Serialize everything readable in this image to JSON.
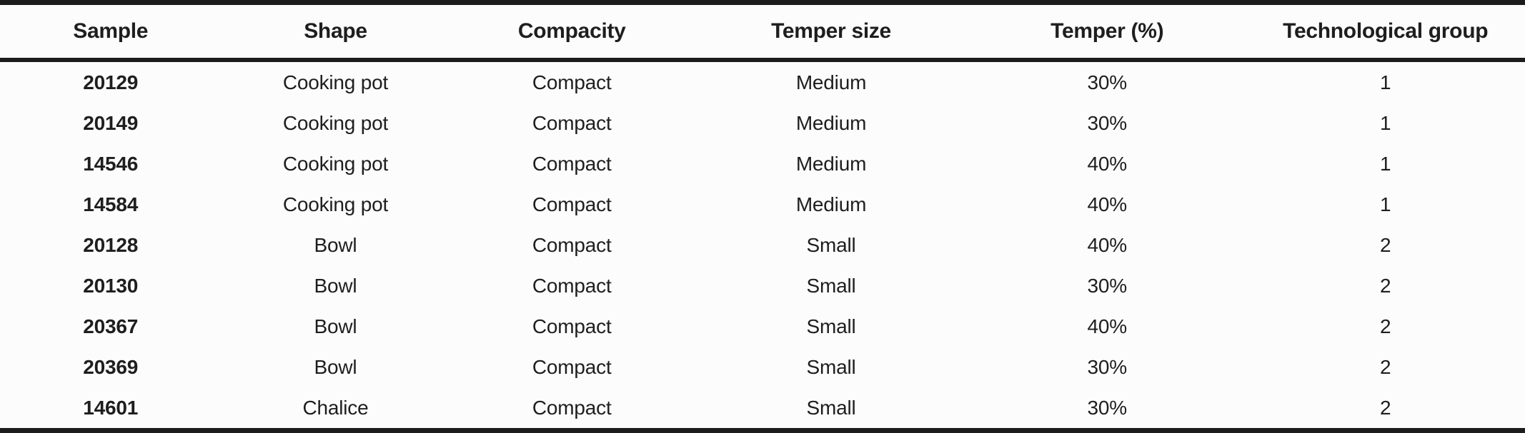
{
  "table": {
    "columns": [
      {
        "key": "sample",
        "label": "Sample"
      },
      {
        "key": "shape",
        "label": "Shape"
      },
      {
        "key": "compacity",
        "label": "Compacity"
      },
      {
        "key": "temper_size",
        "label": "Temper size"
      },
      {
        "key": "temper_pct",
        "label": "Temper (%)"
      },
      {
        "key": "tech_group",
        "label": "Technological group"
      }
    ],
    "rows": [
      [
        "20129",
        "Cooking pot",
        "Compact",
        "Medium",
        "30%",
        "1"
      ],
      [
        "20149",
        "Cooking pot",
        "Compact",
        "Medium",
        "30%",
        "1"
      ],
      [
        "14546",
        "Cooking pot",
        "Compact",
        "Medium",
        "40%",
        "1"
      ],
      [
        "14584",
        "Cooking pot",
        "Compact",
        "Medium",
        "40%",
        "1"
      ],
      [
        "20128",
        "Bowl",
        "Compact",
        "Small",
        "40%",
        "2"
      ],
      [
        "20130",
        "Bowl",
        "Compact",
        "Small",
        "30%",
        "2"
      ],
      [
        "20367",
        "Bowl",
        "Compact",
        "Small",
        "40%",
        "2"
      ],
      [
        "20369",
        "Bowl",
        "Compact",
        "Small",
        "30%",
        "2"
      ],
      [
        "14601",
        "Chalice",
        "Compact",
        "Small",
        "30%",
        "2"
      ]
    ]
  },
  "colors": {
    "text": "#1e1e1e",
    "rule": "#1c1c1c",
    "background": "#fcfcfc"
  }
}
